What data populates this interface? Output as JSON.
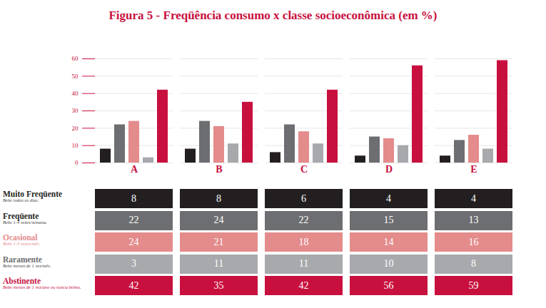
{
  "chart_data": {
    "type": "bar",
    "title": "Figura 5 - Freqüência consumo x classe socioeconômica (em %)",
    "categories": [
      "A",
      "B",
      "C",
      "D",
      "E"
    ],
    "series": [
      {
        "name": "Muito Freqüente",
        "description": "Bebe todos os dias.",
        "color": "#231f20",
        "values": [
          8,
          8,
          6,
          4,
          4
        ]
      },
      {
        "name": "Freqüente",
        "description": "Bebe 1-4 vezes/semana.",
        "color": "#6d6e71",
        "values": [
          22,
          24,
          22,
          15,
          13
        ]
      },
      {
        "name": "Ocasional",
        "description": "Bebe 1-3 vezes/mês.",
        "color": "#e48b8b",
        "values": [
          24,
          21,
          18,
          14,
          16
        ]
      },
      {
        "name": "Raramente",
        "description": "Bebe menos de 1 vez/mês.",
        "color": "#a7a9ac",
        "values": [
          3,
          11,
          11,
          10,
          8
        ]
      },
      {
        "name": "Abstinente",
        "description": "Bebe menos de 1 vez/ano ou nunca bebeu.",
        "color": "#c8103e",
        "values": [
          42,
          35,
          42,
          56,
          59
        ]
      }
    ],
    "ylim": [
      0,
      60
    ],
    "yticks": [
      0,
      10,
      20,
      30,
      40,
      50,
      60
    ],
    "grid": true
  }
}
